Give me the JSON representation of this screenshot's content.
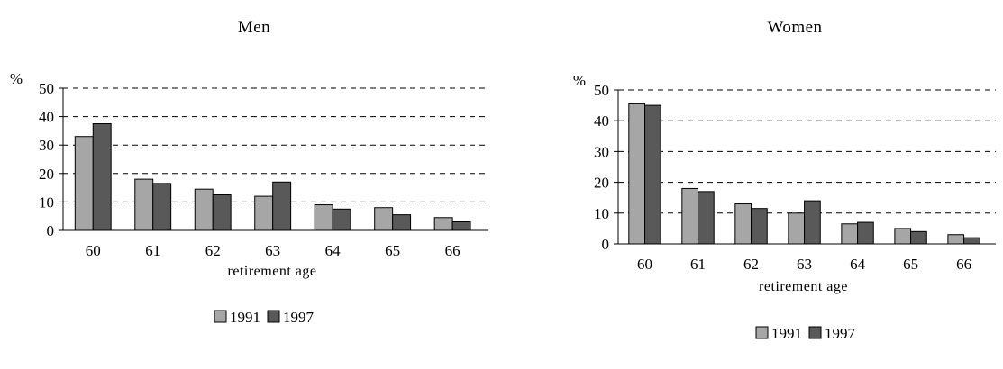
{
  "chart_data": [
    {
      "type": "bar",
      "title": "Men",
      "xlabel": "retirement age",
      "ylabel": "%",
      "ylim": [
        0,
        50
      ],
      "yticks": [
        "0",
        "10",
        "20",
        "30",
        "40",
        "50"
      ],
      "categories": [
        "60",
        "61",
        "62",
        "63",
        "64",
        "65",
        "66"
      ],
      "series": [
        {
          "name": "1991",
          "values": [
            33,
            18,
            14.5,
            12,
            9,
            8,
            4.5
          ]
        },
        {
          "name": "1997",
          "values": [
            37.5,
            16.5,
            12.5,
            17,
            7.5,
            5.5,
            3
          ]
        }
      ],
      "grid": true,
      "legend": "bottom"
    },
    {
      "type": "bar",
      "title": "Women",
      "xlabel": "retirement age",
      "ylabel": "%",
      "ylim": [
        0,
        50
      ],
      "yticks": [
        "0",
        "10",
        "20",
        "30",
        "40",
        "50"
      ],
      "categories": [
        "60",
        "61",
        "62",
        "63",
        "64",
        "65",
        "66"
      ],
      "series": [
        {
          "name": "1991",
          "values": [
            45.5,
            18,
            13,
            10,
            6.5,
            5,
            3
          ]
        },
        {
          "name": "1997",
          "values": [
            45,
            17,
            11.5,
            14,
            7,
            4,
            2
          ]
        }
      ],
      "grid": true,
      "legend": "bottom"
    }
  ],
  "colors": {
    "series_1991": "#a6a6a6",
    "series_1997": "#595959",
    "grid": "#000000"
  }
}
